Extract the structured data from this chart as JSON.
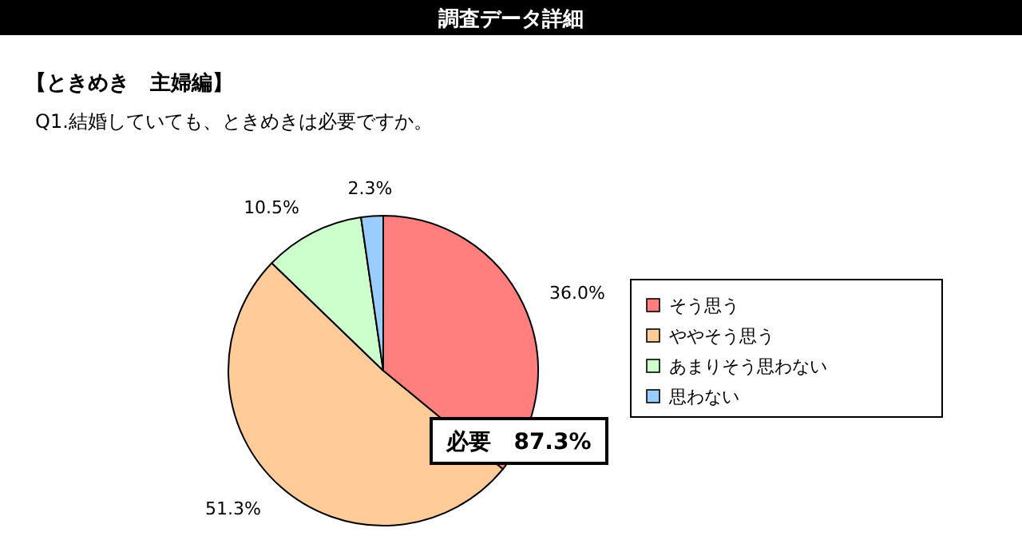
{
  "chart_data": {
    "type": "pie",
    "title": "調査データ詳細",
    "subtitle": "【ときめき　主婦編】",
    "annotations": [
      "Q1.結婚していても、ときめきは必要ですか。",
      "必要　87.3%"
    ],
    "categories": [
      "そう思う",
      "ややそう思う",
      "あまりそう思わない",
      "思わない"
    ],
    "values": [
      36.0,
      51.3,
      10.5,
      2.3
    ],
    "colors": [
      "#ff7f7f",
      "#ffcc99",
      "#ccffcc",
      "#99ccff"
    ],
    "value_labels": [
      "36.0%",
      "51.3%",
      "10.5%",
      "2.3%"
    ],
    "legend": "right"
  }
}
